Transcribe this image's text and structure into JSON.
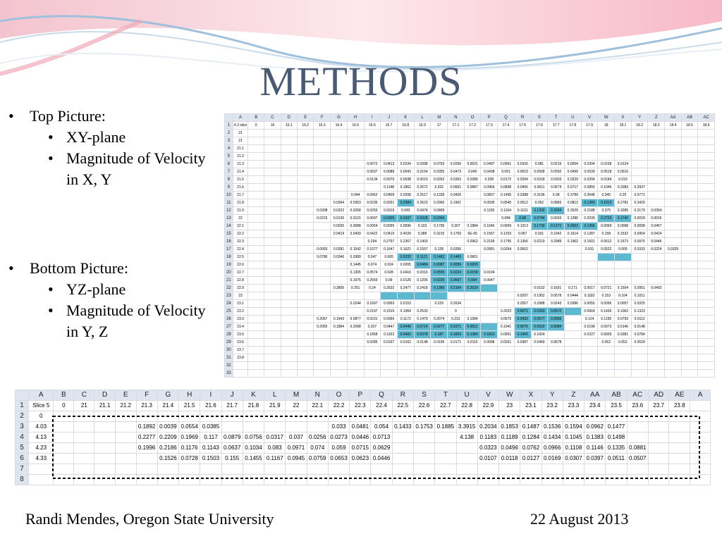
{
  "slide": {
    "title": "METHODS",
    "bullets": [
      {
        "label": "Top Picture:",
        "sub": [
          "XY-plane",
          "Magnitude of Velocity in X, Y"
        ]
      },
      {
        "label": "Bottom Picture:",
        "sub": [
          "YZ-plane",
          "Magnitude of Velocity in Y, Z"
        ]
      }
    ],
    "footer_left": "Randi Mendes, Oregon State University",
    "footer_right": "22 August 2013"
  },
  "colors": {
    "title": "#4a5a72",
    "highlight": "#5cb9cf",
    "header": "#dfe5ef"
  },
  "top_sheet": {
    "columns": [
      "A",
      "B",
      "C",
      "D",
      "E",
      "F",
      "G",
      "H",
      "I",
      "J",
      "K",
      "L",
      "M",
      "N",
      "O",
      "P",
      "Q",
      "R",
      "S",
      "T",
      "U",
      "V",
      "W",
      "X",
      "Y",
      "Z",
      "AA",
      "AB",
      "AC"
    ],
    "rows": [
      [
        "4.3 slice",
        "0",
        "16",
        "16.1",
        "16.2",
        "16.3",
        "16.4",
        "16.5",
        "16.6",
        "16.7",
        "16.8",
        "16.9",
        "17",
        "17.1",
        "17.2",
        "17.3",
        "17.4",
        "17.5",
        "17.6",
        "17.7",
        "17.8",
        "17.9",
        "18",
        "18.1",
        "18.2",
        "18.3",
        "18.4",
        "18.5",
        "18.6"
      ],
      [
        "21"
      ],
      [
        "21"
      ],
      [
        "21.1"
      ],
      [
        "21.2"
      ],
      [
        "21.3",
        "",
        "",
        "",
        "",
        "",
        "",
        "",
        "0.0072",
        "0.0413",
        "0.0234",
        "0.0398",
        "0.0763",
        "0.0266",
        "0.0631",
        "0.0497",
        "0.0961",
        "0.0326",
        "0.081",
        "0.0219",
        "0.0054",
        "0.0304",
        "0.0158",
        "0.0124"
      ],
      [
        "21.4",
        "",
        "",
        "",
        "",
        "",
        "",
        "",
        "0.0037",
        "0.0088",
        "0.0043",
        "0.0154",
        "0.0355",
        "0.0473",
        "0.045",
        "0.0438",
        "0.061",
        "0.0623",
        "0.0568",
        "0.0592",
        "0.0499",
        "0.0539",
        "0.0518",
        "0.0516"
      ],
      [
        "21.5",
        "",
        "",
        "",
        "",
        "",
        "",
        "",
        "0.0134",
        "0.0076",
        "0.0038",
        "0.0019",
        "0.0262",
        "0.0303",
        "0.0286",
        "0.028",
        "0.0172",
        "0.0294",
        "0.0318",
        "0.0303",
        "0.0229",
        "0.0204",
        "0.0184",
        "0.019"
      ],
      [
        "21.6",
        "",
        "",
        "",
        "",
        "",
        "",
        "",
        "",
        "0.1148",
        "0.1861",
        "0.2672",
        "0.332",
        "0.0661",
        "0.0887",
        "0.0969",
        "0.0898",
        "0.0406",
        "0.0611",
        "0.0674",
        "0.0717",
        "0.0855",
        "0.1046",
        "0.2083",
        "0.2937"
      ],
      [
        "21.7",
        "",
        "",
        "",
        "",
        "",
        "",
        "0.044",
        "0.0452",
        "0.0409",
        "0.0208",
        "0.2517",
        "0.1339",
        "0.0426",
        "",
        "0.0827",
        "0.1495",
        "0.2388",
        "0.3136",
        "0.38",
        "0.3789",
        "0.3648",
        "0.345",
        "0.25",
        "0.0771"
      ],
      [
        "21.8",
        "",
        "",
        "",
        "",
        "",
        "0.0364",
        "0.0353",
        "0.0236",
        "0.0291",
        "0.2584",
        "0.2623",
        "0.2965",
        "0.1901",
        "",
        "0.0505",
        "0.0545",
        "0.0512",
        "0.052",
        "0.0865",
        "0.0813",
        "0.1283",
        "0.1913",
        "0.2781",
        "0.3429"
      ],
      [
        "21.9",
        "",
        "",
        "",
        "",
        "0.0308",
        "0.0322",
        "0.0268",
        "0.0255",
        "0.0319",
        "0.043",
        "0.0474",
        "0.0469",
        "",
        "",
        "0.1155",
        "0.1164",
        "0.1101",
        "0.1202",
        "0.3294",
        "0.3529",
        "0.2188",
        "0.375",
        "0.3285",
        "0.2179",
        "0.0354"
      ],
      [
        "22",
        "",
        "",
        "",
        "",
        "0.0215",
        "0.0136",
        "0.0121",
        "0.0097",
        "0.0305",
        "0.0337",
        "0.0328",
        "0.0394",
        "",
        "",
        "",
        "0.084",
        "0.08",
        "0.0794",
        "0.0933",
        "0.1286",
        "0.2039",
        "0.2723",
        "0.1742",
        "0.0018",
        "0.0016"
      ],
      [
        "22.1",
        "",
        "",
        "",
        "",
        "",
        "0.0035",
        "0.0088",
        "0.0054",
        "0.0095",
        "0.0696",
        "0.103",
        "0.1795",
        "0.307",
        "0.1884",
        "0.1046",
        "0.0999",
        "0.1313",
        "0.1739",
        "0.1272",
        "0.0003",
        "0.1366",
        "0.0069",
        "0.0098",
        "0.0008",
        "0.0457"
      ],
      [
        "22.2",
        "",
        "",
        "",
        "",
        "",
        "0.0419",
        "0.0439",
        "0.0422",
        "0.0415",
        "0.4039",
        "0.388",
        "0.3215",
        "0.1769",
        "6E-05",
        "0.1567",
        "0.1253",
        "0.067",
        "0.031",
        "0.1942",
        "0.1614",
        "0.1287",
        "0.158",
        "0.1532",
        "0.0954",
        "0.0424"
      ],
      [
        "22.3",
        "",
        "",
        "",
        "",
        "",
        "",
        "",
        "0.294",
        "0.2797",
        "0.2367",
        "0.1403",
        "",
        "",
        "0.0962",
        "0.2199",
        "0.1795",
        "0.1356",
        "0.0219",
        "0.2989",
        "0.1962",
        "0.1601",
        "0.0612",
        "0.1673",
        "0.0975",
        "0.0446"
      ],
      [
        "22.4",
        "",
        "",
        "",
        "",
        "0.0093",
        "0.0281",
        "0.1542",
        "0.1077",
        "0.1647",
        "0.1621",
        "0.1557",
        "0.128",
        "0.0356",
        "",
        "0.0991",
        "0.0264",
        "0.0502",
        "",
        "",
        "",
        "0.031",
        "0.0522",
        "0.005",
        "0.0333",
        "0.0224",
        "0.0329"
      ],
      [
        "22.5",
        "",
        "",
        "",
        "",
        "0.0786",
        "0.0346",
        "0.0389",
        "0.047",
        "0.065",
        "0.0232",
        "0.1121",
        "0.1462",
        "0.1463",
        "0.0801"
      ],
      [
        "22.6",
        "",
        "",
        "",
        "",
        "",
        "",
        "0.1445",
        "0.074",
        "0.024",
        "0.0265",
        "0.0484",
        "0.0087",
        "0.0059",
        "0.0309"
      ],
      [
        "22.7",
        "",
        "",
        "",
        "",
        "",
        "",
        "0.1305",
        "0.0574",
        "0.028",
        "0.0416",
        "0.0316",
        "0.0555",
        "0.0224",
        "0.0158",
        "0.0104"
      ],
      [
        "22.8",
        "",
        "",
        "",
        "",
        "",
        "",
        "0.1976",
        "0.2569",
        "0.09",
        "0.0125",
        "0.1206",
        "0.0225",
        "0.0697",
        "0.004",
        "0.0047"
      ],
      [
        "22.9",
        "",
        "",
        "",
        "",
        "",
        "0.2805",
        "0.251",
        "0.24",
        "0.2632",
        "0.2477",
        "0.2418",
        "0.1369",
        "0.2164",
        "0.2529",
        "",
        "",
        "",
        "0.0152",
        "0.1601",
        "0.171",
        "0.0617",
        "0.0721",
        "0.1504",
        "0.0951",
        "0.0493"
      ],
      [
        "23",
        "",
        "",
        "",
        "",
        "",
        "",
        "",
        "",
        "",
        "",
        "",
        "",
        "",
        "",
        "",
        "",
        "0.0297",
        "0.1952",
        "0.0578",
        "0.0444",
        "0.1182",
        "0.153",
        "0.164",
        "0.1011"
      ],
      [
        "23.1",
        "",
        "",
        "",
        "",
        "",
        "",
        "0.2244",
        "0.1697",
        "0.0993",
        "0.0153",
        "",
        "0.229",
        "0.2634",
        "",
        "",
        "",
        "0.2567",
        "0.2988",
        "0.0243",
        "0.0386",
        "0.0055",
        "0.0096",
        "0.0057",
        "0.0325"
      ],
      [
        "23.2",
        "",
        "",
        "",
        "",
        "",
        "",
        "",
        "0.2197",
        "0.1915",
        "0.1964",
        "0.2529",
        "",
        "0",
        "",
        "",
        "0.2023",
        "0.0071",
        "0.0263",
        "0.0572",
        "",
        "0.0664",
        "0.1436",
        "0.1062",
        "0.1323"
      ],
      [
        "23.3",
        "",
        "",
        "",
        "",
        "0.2067",
        "0.1943",
        "0.0877",
        "0.0231",
        "0.0366",
        "0.1172",
        "0.1479",
        "0.2074",
        "0.231",
        "0.1584",
        "",
        "0.0575",
        "0.0432",
        "0.0577",
        "0.0566",
        "",
        "0.124",
        "0.1195",
        "0.0793",
        "0.0112"
      ],
      [
        "23.4",
        "",
        "",
        "",
        "",
        "0.2055",
        "0.1884",
        "0.2098",
        "0.207",
        "0.0447",
        "0.0449",
        "0.0714",
        "0.0277",
        "0.0371",
        "0.0521",
        "",
        "0.1041",
        "0.0076",
        "0.0022",
        "0.0084",
        "",
        "0.0198",
        "0.0073",
        "0.0146",
        "0.0148"
      ],
      [
        "23.5",
        "",
        "",
        "",
        "",
        "",
        "",
        "",
        "0.1858",
        "0.1922",
        "0.0402",
        "0.0378",
        "0.187",
        "0.1823",
        "0.1384",
        "0.1813",
        "0.0951",
        "0.1456",
        "0.1824",
        "",
        "",
        "0.0227",
        "0.0059",
        "0.0381",
        "0.0784"
      ],
      [
        "23.6",
        "",
        "",
        "",
        "",
        "",
        "",
        "",
        "0.0285",
        "0.0197",
        "0.0162",
        "0.0148",
        "0.0195",
        "0.0171",
        "0.0115",
        "0.0098",
        "0.0261",
        "0.0387",
        "0.0469",
        "0.0678",
        "",
        "",
        "0.052",
        "0.052",
        "0.0529"
      ],
      [
        "23.7"
      ],
      [
        "23.8"
      ],
      [],
      []
    ],
    "highlights": [
      [
        10,
        10
      ],
      [
        10,
        21
      ],
      [
        10,
        22
      ],
      [
        11,
        18
      ],
      [
        11,
        19
      ],
      [
        12,
        9
      ],
      [
        12,
        10
      ],
      [
        12,
        11
      ],
      [
        12,
        12
      ],
      [
        12,
        17
      ],
      [
        12,
        18
      ],
      [
        12,
        22
      ],
      [
        12,
        23
      ],
      [
        13,
        18
      ],
      [
        13,
        19
      ],
      [
        13,
        20
      ],
      [
        13,
        21
      ],
      [
        17,
        10
      ],
      [
        17,
        11
      ],
      [
        17,
        12
      ],
      [
        17,
        13
      ],
      [
        17,
        22
      ],
      [
        17,
        23
      ],
      [
        18,
        11
      ],
      [
        18,
        12
      ],
      [
        18,
        13
      ],
      [
        18,
        14
      ],
      [
        19,
        12
      ],
      [
        19,
        13
      ],
      [
        19,
        14
      ],
      [
        20,
        12
      ],
      [
        20,
        13
      ],
      [
        20,
        14
      ],
      [
        21,
        12
      ],
      [
        21,
        13
      ],
      [
        21,
        14
      ],
      [
        21,
        15
      ],
      [
        22,
        9
      ],
      [
        22,
        10
      ],
      [
        22,
        11
      ],
      [
        22,
        12
      ],
      [
        24,
        17
      ],
      [
        24,
        18
      ],
      [
        24,
        19
      ],
      [
        24,
        20
      ],
      [
        25,
        17
      ],
      [
        25,
        18
      ],
      [
        25,
        19
      ],
      [
        26,
        10
      ],
      [
        26,
        11
      ],
      [
        26,
        12
      ],
      [
        26,
        13
      ],
      [
        26,
        14
      ],
      [
        26,
        15
      ],
      [
        26,
        17
      ],
      [
        26,
        18
      ],
      [
        26,
        19
      ],
      [
        27,
        10
      ],
      [
        27,
        11
      ],
      [
        27,
        12
      ],
      [
        27,
        13
      ],
      [
        27,
        14
      ],
      [
        27,
        15
      ],
      [
        27,
        17
      ]
    ]
  },
  "bottom_sheet": {
    "columns": [
      "A",
      "B",
      "C",
      "D",
      "E",
      "F",
      "G",
      "H",
      "I",
      "J",
      "K",
      "L",
      "M",
      "N",
      "O",
      "P",
      "Q",
      "R",
      "S",
      "T",
      "U",
      "V",
      "W",
      "X",
      "Y",
      "Z",
      "AA",
      "AB",
      "AC",
      "AD",
      "AE",
      "A"
    ],
    "rows": [
      [
        "Slice 5",
        "0",
        "21",
        "21.1",
        "21.2",
        "21.3",
        "21.4",
        "21.5",
        "21.6",
        "21.7",
        "21.8",
        "21.9",
        "22",
        "22.1",
        "22.2",
        "22.3",
        "22.4",
        "22.5",
        "22.6",
        "22.7",
        "22.8",
        "22.9",
        "23",
        "23.1",
        "23.2",
        "23.3",
        "23.4",
        "23.5",
        "23.6",
        "23.7",
        "23.8"
      ],
      [
        "0"
      ],
      [
        "4.03",
        "",
        "",
        "",
        "",
        "0.1892",
        "0.0039",
        "0.0554",
        "0.0385",
        "",
        "",
        "",
        "",
        "",
        "0.033",
        "0.0481",
        "0.054",
        "0.1433",
        "0.1753",
        "0.1885",
        "3.3915",
        "0.2034",
        "0.1853",
        "0.1487",
        "0.1536",
        "0.1594",
        "0.0962",
        "0.1477"
      ],
      [
        "4.13",
        "",
        "",
        "",
        "",
        "0.2277",
        "0.2209",
        "0.1969",
        "0.117",
        "0.0879",
        "0.0756",
        "0.0317",
        "0.037",
        "0.0256",
        "0.0273",
        "0.0446",
        "0.0713",
        "",
        "",
        "",
        "4.138",
        "0.1183",
        "0.1189",
        "0.1284",
        "0.1434",
        "0.1045",
        "0.1383",
        "0.1498"
      ],
      [
        "4.23",
        "",
        "",
        "",
        "",
        "0.1996",
        "0.2186",
        "0.1176",
        "0.1143",
        "0.0637",
        "0.1034",
        "0.083",
        "0.0971",
        "0.074",
        "0.059",
        "0.0715",
        "0.0629",
        "",
        "",
        "",
        "",
        "0.0323",
        "0.0496",
        "0.0762",
        "0.0966",
        "0.1108",
        "0.1146",
        "0.1335",
        "0.0881"
      ],
      [
        "4.33",
        "",
        "",
        "",
        "",
        "",
        "0.1526",
        "0.0728",
        "0.1503",
        "0.155",
        "0.1455",
        "0.1167",
        "0.0945",
        "0.0759",
        "0.0653",
        "0.0623",
        "0.0446",
        "",
        "",
        "",
        "",
        "0.0107",
        "0.0118",
        "0.0127",
        "0.0169",
        "0.0307",
        "0.0397",
        "0.0511",
        "0.0507"
      ],
      [],
      []
    ]
  }
}
